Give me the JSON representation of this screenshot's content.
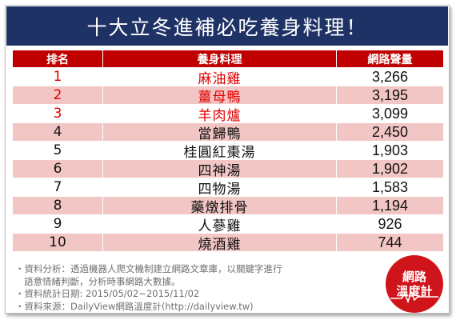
{
  "title": "十大立冬進補必吃養身料理！",
  "table": {
    "headers": {
      "rank": "排名",
      "dish": "養身料理",
      "volume": "網路聲量"
    },
    "rows": [
      {
        "rank": "1",
        "dish": "麻油雞",
        "volume": "3,266"
      },
      {
        "rank": "2",
        "dish": "薑母鴨",
        "volume": "3,195"
      },
      {
        "rank": "3",
        "dish": "羊肉爐",
        "volume": "3,099"
      },
      {
        "rank": "4",
        "dish": "當歸鴨",
        "volume": "2,450"
      },
      {
        "rank": "5",
        "dish": "桂圓紅棗湯",
        "volume": "1,903"
      },
      {
        "rank": "6",
        "dish": "四神湯",
        "volume": "1,902"
      },
      {
        "rank": "7",
        "dish": "四物湯",
        "volume": "1,583"
      },
      {
        "rank": "8",
        "dish": "藥燉排骨",
        "volume": "1,194"
      },
      {
        "rank": "9",
        "dish": "人蔘雞",
        "volume": "926"
      },
      {
        "rank": "10",
        "dish": "燒酒雞",
        "volume": "744"
      }
    ]
  },
  "notes": {
    "analysis": "・資料分析：透過機器人爬文機制建立網路文章庫，以關鍵字進行",
    "analysis_cont": "語意情緒判斷，分析時事網路大數據。",
    "period": "・資料統計日期: 2015/05/02~2015/11/02",
    "source": "・資料來源：DailyView網路溫度計(http://dailyview.tw)"
  },
  "logo": {
    "line1": "網路",
    "line2": "溫度計"
  },
  "colors": {
    "title_bg": "#1f3266",
    "header_bg": "#c00000",
    "stripe": "#f2c6c4",
    "top3_text": "#e00000",
    "logo_bg": "#d0141b"
  }
}
